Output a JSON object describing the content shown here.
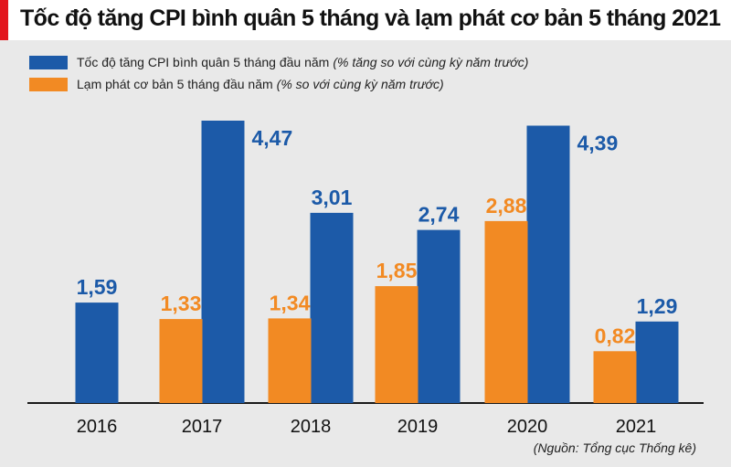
{
  "chart_data": {
    "type": "bar",
    "title": "Tốc độ tăng CPI bình quân 5 tháng và lạm phát cơ bản 5 tháng 2021",
    "categories": [
      "2016",
      "2017",
      "2018",
      "2019",
      "2020",
      "2021"
    ],
    "series": [
      {
        "name": "Tốc độ tăng CPI bình quân 5 tháng đầu năm",
        "note": "(% tăng so với cùng kỳ năm trước)",
        "color": "#1c5aa8",
        "values": [
          1.59,
          4.47,
          3.01,
          2.74,
          4.39,
          1.29
        ],
        "labels": [
          "1,59",
          "4,47",
          "3,01",
          "2,74",
          "4,39",
          "1,29"
        ]
      },
      {
        "name": "Lạm phát cơ bản 5 tháng đầu năm",
        "note": "(% so với cùng kỳ năm trước)",
        "color": "#f28a23",
        "values": [
          null,
          1.33,
          1.34,
          1.85,
          2.88,
          0.82
        ],
        "labels": [
          null,
          "1,33",
          "1,34",
          "1,85",
          "2,88",
          "0,82"
        ]
      }
    ],
    "xlabel": "",
    "ylabel": "",
    "ylim": [
      0,
      4.6
    ],
    "grid": false,
    "legend": "top-left"
  },
  "colors": {
    "accent": "#e3161d"
  },
  "source": "(Nguồn: Tổng cục Thống kê)"
}
